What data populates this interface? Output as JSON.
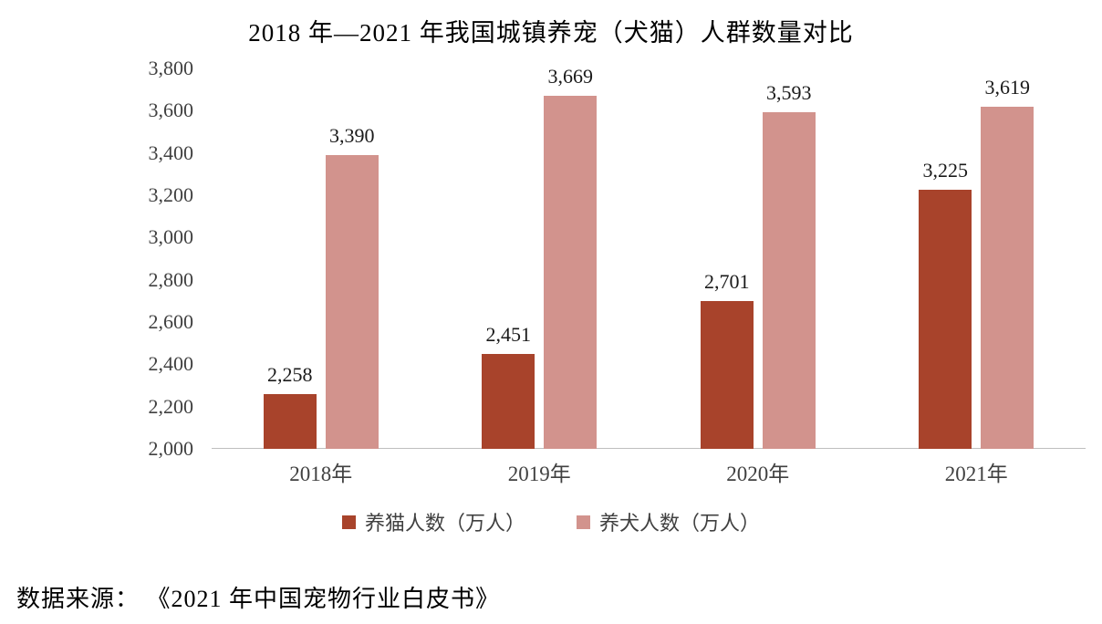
{
  "title": "2018 年—2021 年我国城镇养宠（犬猫）人群数量对比",
  "source": "数据来源： 《2021 年中国宠物行业白皮书》",
  "chart_data": {
    "type": "bar",
    "title": "2018 年—2021 年我国城镇养宠（犬猫）人群数量对比",
    "categories": [
      "2018年",
      "2019年",
      "2020年",
      "2021年"
    ],
    "series": [
      {
        "name": "养猫人数（万人）",
        "color": "#A8432B",
        "values": [
          2258,
          2451,
          2701,
          3225
        ]
      },
      {
        "name": "养犬人数（万人）",
        "color": "#D2938D",
        "values": [
          3390,
          3669,
          3593,
          3619
        ]
      }
    ],
    "ylim": [
      2000,
      3800
    ],
    "ytick_step": 200,
    "grid": false,
    "legend_position": "bottom",
    "xlabel": "",
    "ylabel": ""
  }
}
